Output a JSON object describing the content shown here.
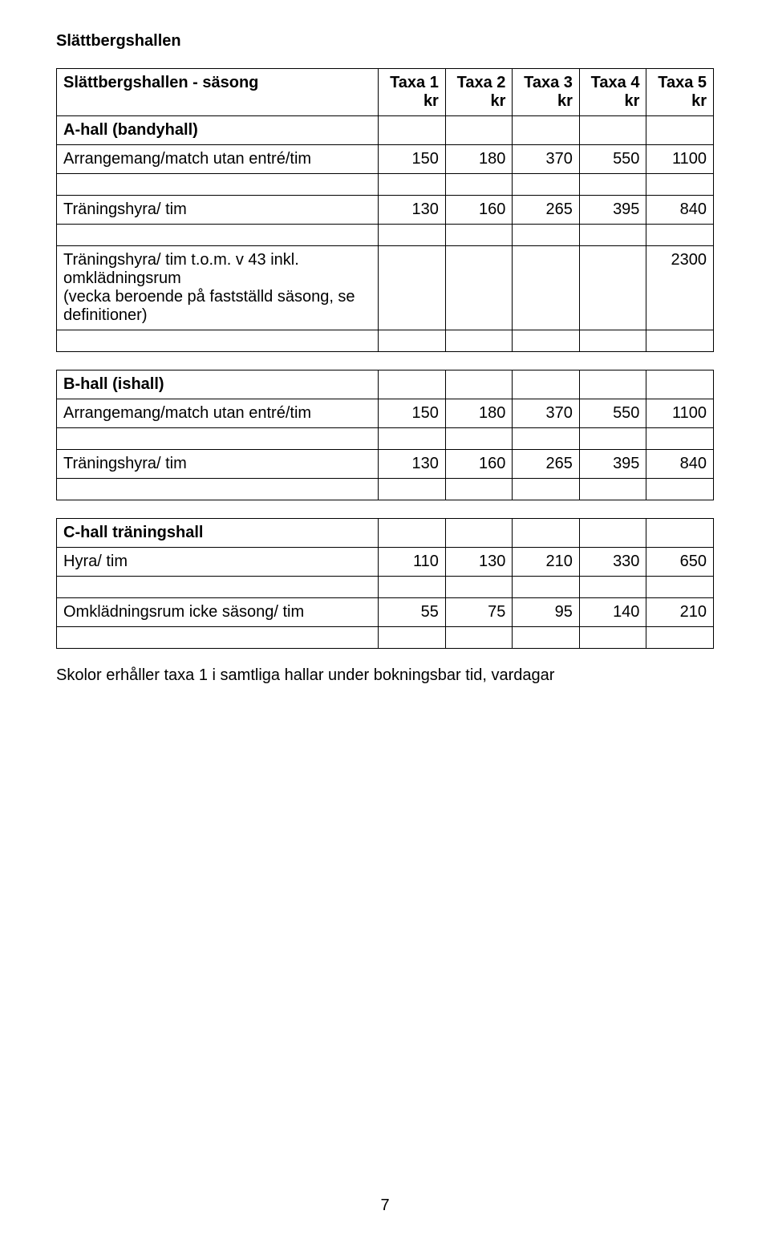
{
  "title": "Slättbergshallen",
  "table1": {
    "header_row_title": "Slättbergshallen - säsong",
    "taxa_headers": [
      "Taxa 1",
      "Taxa 2",
      "Taxa 3",
      "Taxa 4",
      "Taxa 5"
    ],
    "unit": "kr",
    "section_head": "A-hall (bandyhall)",
    "row1_label": "Arrangemang/match utan entré/tim",
    "row1": [
      "150",
      "180",
      "370",
      "550",
      "1100"
    ],
    "row2_label": "Träningshyra/ tim",
    "row2": [
      "130",
      "160",
      "265",
      "395",
      "840"
    ],
    "row3_label_line1": "Träningshyra/ tim t.o.m. v 43 inkl. omklädningsrum",
    "row3_label_line2": "(vecka beroende på fastställd säsong, se definitioner)",
    "row3_last": "2300"
  },
  "table2": {
    "section_head": "B-hall (ishall)",
    "row1_label": "Arrangemang/match utan entré/tim",
    "row1": [
      "150",
      "180",
      "370",
      "550",
      "1100"
    ],
    "row2_label": "Träningshyra/ tim",
    "row2": [
      "130",
      "160",
      "265",
      "395",
      "840"
    ]
  },
  "table3": {
    "section_head": "C-hall träningshall",
    "row1_label": "Hyra/ tim",
    "row1": [
      "110",
      "130",
      "210",
      "330",
      "650"
    ],
    "row2_label": "Omklädningsrum icke säsong/ tim",
    "row2": [
      "55",
      "75",
      "95",
      "140",
      "210"
    ]
  },
  "footnote": "Skolor erhåller taxa 1 i samtliga hallar under bokningsbar tid, vardagar",
  "page_number": "7"
}
